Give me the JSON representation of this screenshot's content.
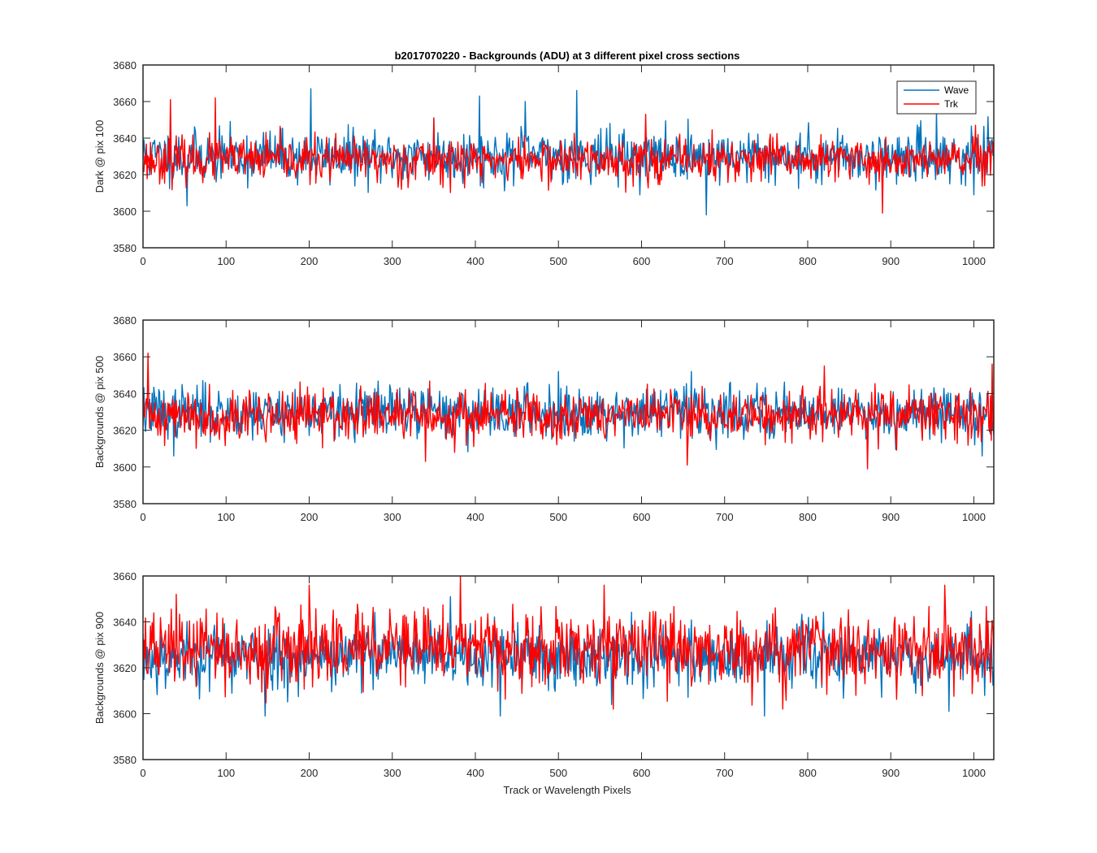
{
  "figure": {
    "title": "b2017070220 - Backgrounds (ADU) at 3 different pixel cross sections",
    "xlabel": "Track or Wavelength Pixels"
  },
  "colors": {
    "wave": "#0072BD",
    "trk": "#FF0000",
    "axis": "#262626"
  },
  "legend": {
    "entries": [
      "Wave",
      "Trk"
    ],
    "placement": "top-right"
  },
  "chart_data": [
    {
      "type": "line",
      "ylabel": "Dark @ pix 100",
      "xlim": [
        0,
        1024
      ],
      "ylim": [
        3580,
        3680
      ],
      "xticks": [
        0,
        100,
        200,
        300,
        400,
        500,
        600,
        700,
        800,
        900,
        1000
      ],
      "yticks": [
        3580,
        3600,
        3620,
        3640,
        3660,
        3680
      ],
      "series": [
        {
          "name": "Wave",
          "mean": 3630,
          "spread": 7,
          "seed": 11,
          "peaks": [
            [
              33,
              3646
            ],
            [
              53,
              3603
            ],
            [
              202,
              3667
            ],
            [
              350,
              3651
            ],
            [
              405,
              3663
            ],
            [
              460,
              3660
            ],
            [
              522,
              3666
            ],
            [
              678,
              3598
            ],
            [
              955,
              3655
            ],
            [
              1000,
              3609
            ]
          ]
        },
        {
          "name": "Trk",
          "mean": 3628,
          "spread": 6,
          "seed": 23,
          "peaks": [
            [
              33,
              3661
            ],
            [
              87,
              3662
            ],
            [
              350,
              3651
            ],
            [
              605,
              3653
            ],
            [
              890,
              3599
            ]
          ]
        }
      ]
    },
    {
      "type": "line",
      "ylabel": "Backgrounds @ pix 500",
      "xlim": [
        0,
        1024
      ],
      "ylim": [
        3580,
        3680
      ],
      "xticks": [
        0,
        100,
        200,
        300,
        400,
        500,
        600,
        700,
        800,
        900,
        1000
      ],
      "yticks": [
        3580,
        3600,
        3620,
        3640,
        3660,
        3680
      ],
      "series": [
        {
          "name": "Wave",
          "mean": 3630,
          "spread": 7,
          "seed": 37,
          "peaks": [
            [
              37,
              3606
            ],
            [
              500,
              3652
            ],
            [
              660,
              3652
            ],
            [
              1010,
              3606
            ]
          ]
        },
        {
          "name": "Trk",
          "mean": 3628,
          "spread": 7,
          "seed": 41,
          "peaks": [
            [
              6,
              3662
            ],
            [
              340,
              3603
            ],
            [
              655,
              3601
            ],
            [
              820,
              3655
            ],
            [
              872,
              3599
            ],
            [
              1022,
              3656
            ]
          ]
        }
      ]
    },
    {
      "type": "line",
      "ylabel": "Backgrounds @ pix 900",
      "xlim": [
        0,
        1024
      ],
      "ylim": [
        3580,
        3660
      ],
      "xticks": [
        0,
        100,
        200,
        300,
        400,
        500,
        600,
        700,
        800,
        900,
        1000
      ],
      "yticks": [
        3580,
        3600,
        3620,
        3640,
        3660
      ],
      "series": [
        {
          "name": "Wave",
          "mean": 3625,
          "spread": 7,
          "seed": 53,
          "peaks": [
            [
              147,
              3599
            ],
            [
              430,
              3599
            ],
            [
              748,
              3599
            ],
            [
              970,
              3601
            ],
            [
              370,
              3651
            ]
          ]
        },
        {
          "name": "Trk",
          "mean": 3628,
          "spread": 8,
          "seed": 67,
          "peaks": [
            [
              382,
              3660
            ],
            [
              200,
              3656
            ],
            [
              40,
              3652
            ],
            [
              555,
              3656
            ],
            [
              770,
              3602
            ],
            [
              965,
              3656
            ]
          ]
        }
      ]
    }
  ]
}
